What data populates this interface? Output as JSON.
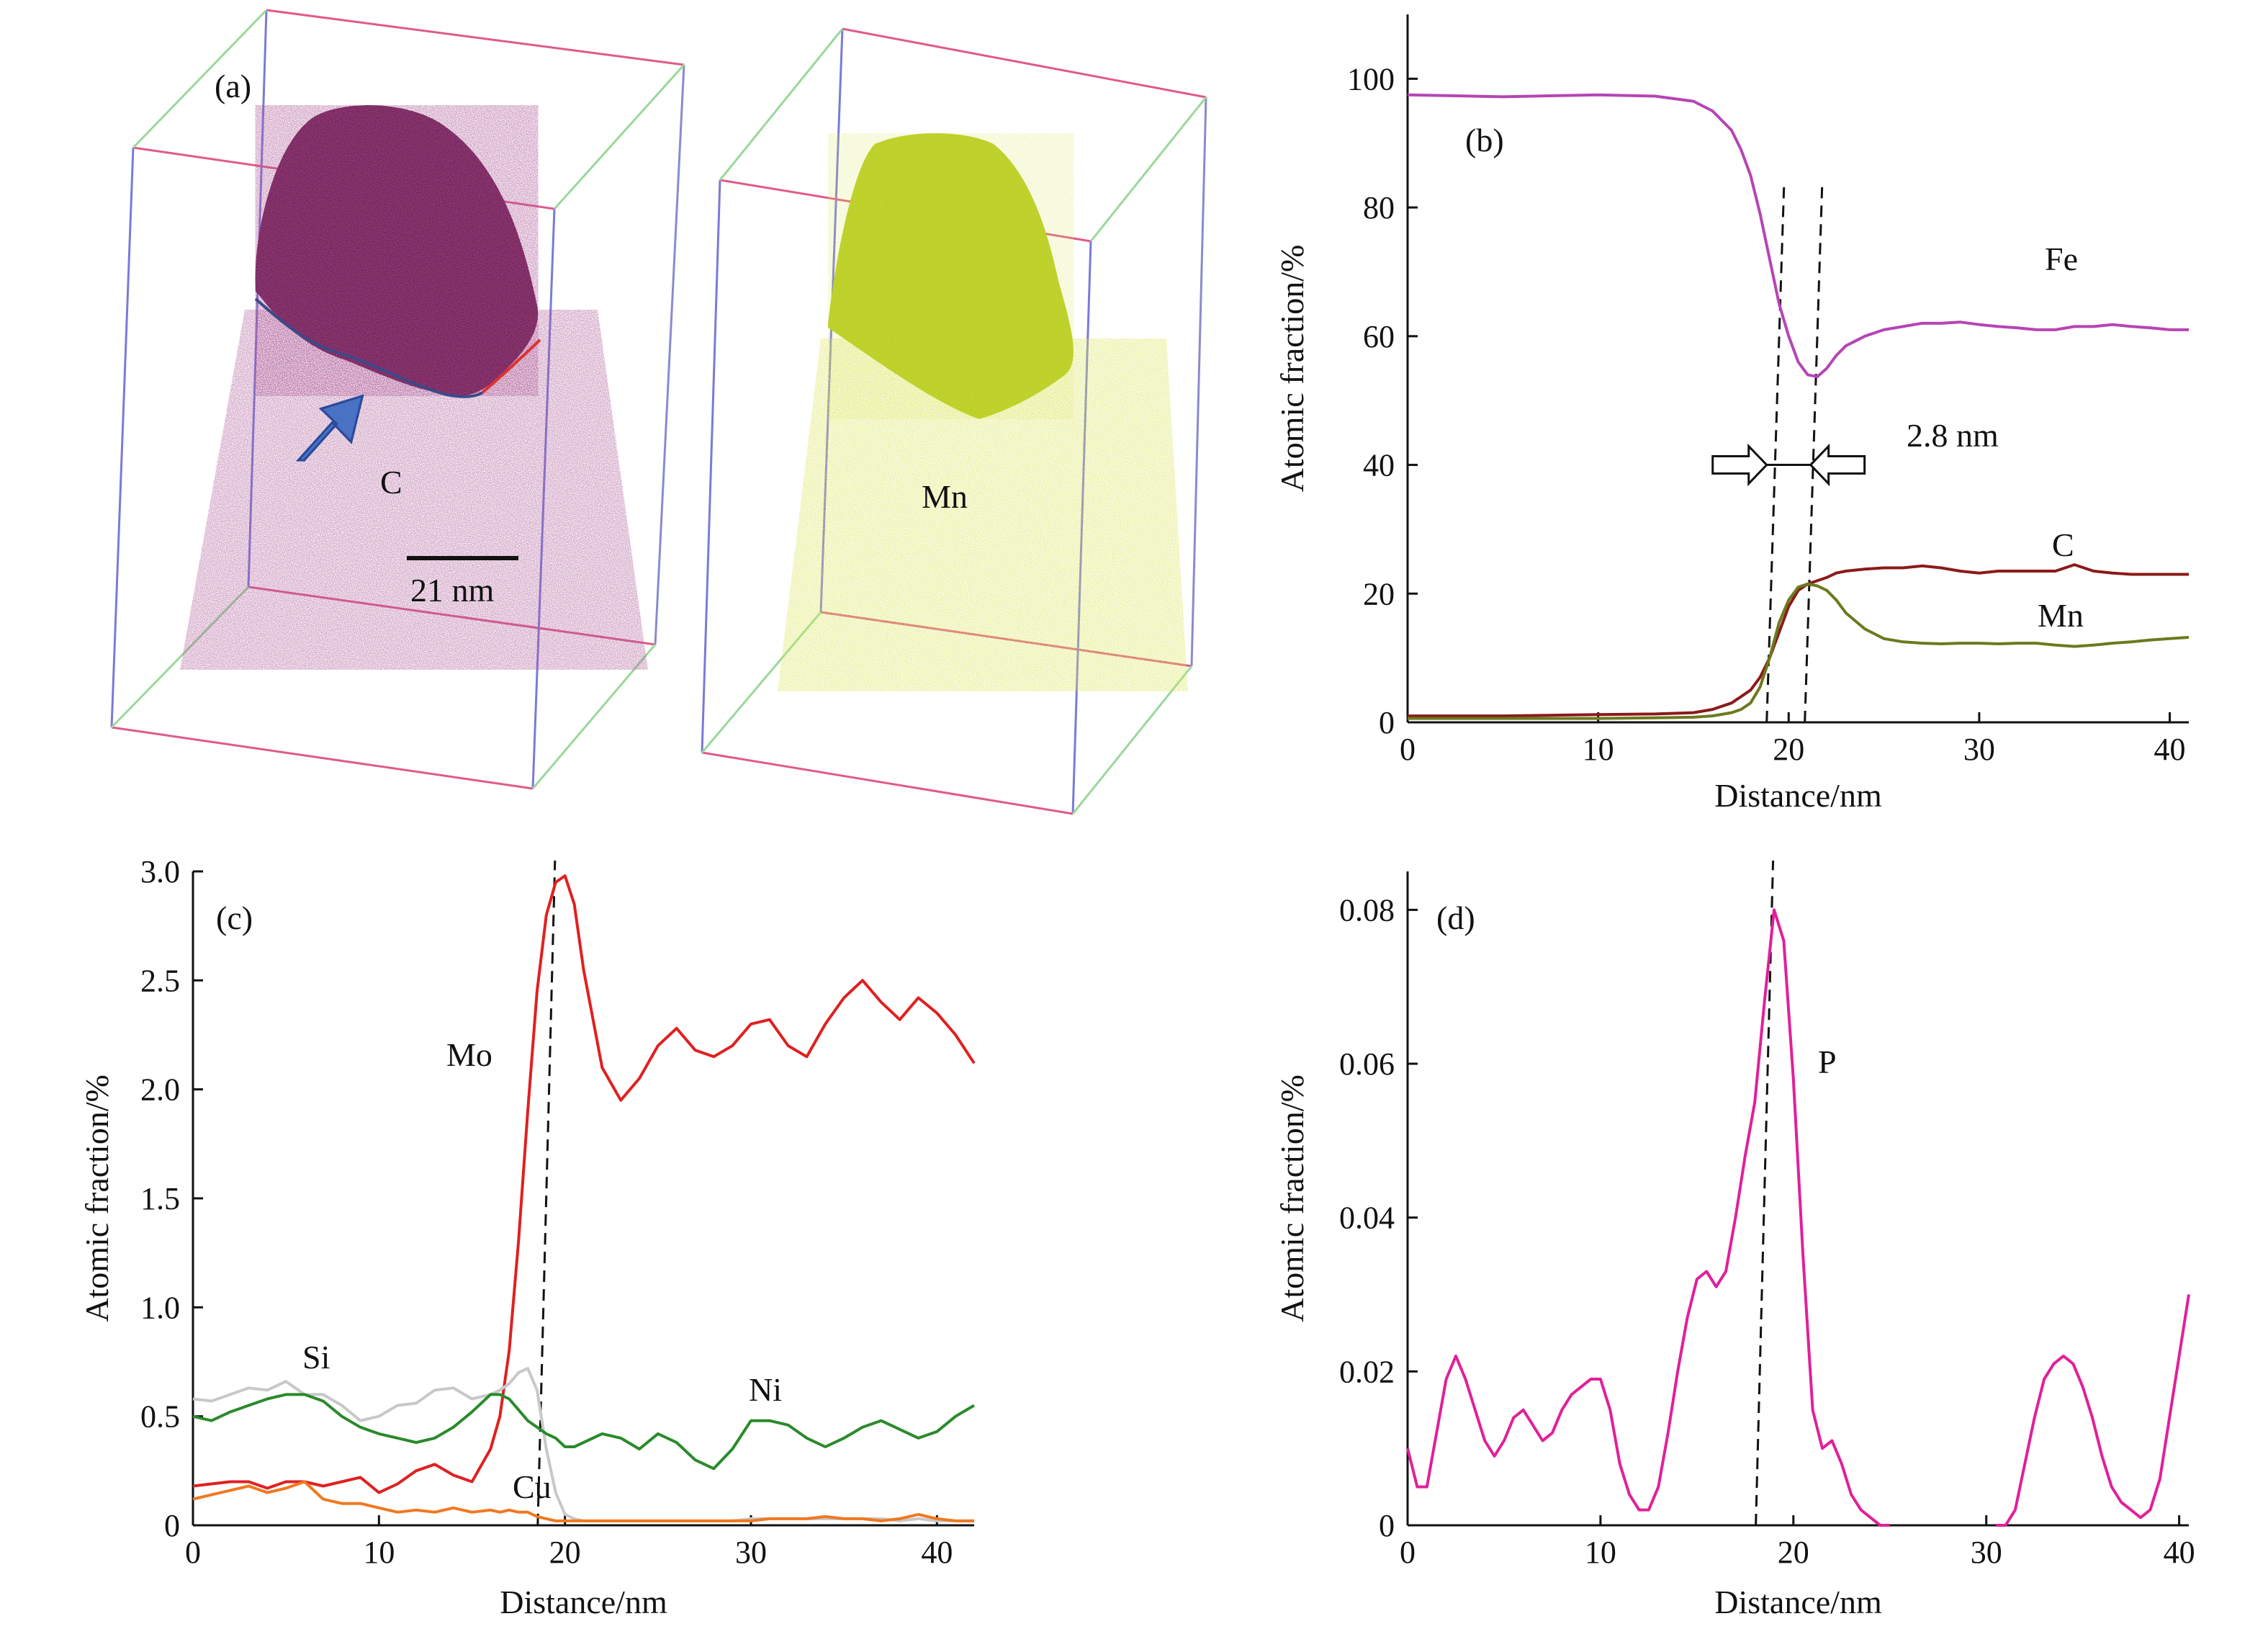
{
  "panels": {
    "a": {
      "label": "(a)",
      "left_element": "C",
      "right_element": "Mn",
      "scalebar_label": "21 nm",
      "colors": {
        "C": "#6b1a4f",
        "Mn": "#b7cc1e",
        "arrow": "#4a72c4"
      }
    }
  },
  "chart_data": [
    {
      "id": "b",
      "type": "line",
      "panel_label": "(b)",
      "xlabel": "Distance/nm",
      "ylabel": "Atomic fraction/%",
      "xlim": [
        0,
        41
      ],
      "ylim": [
        0,
        110
      ],
      "xticks": [
        "0",
        "10",
        "20",
        "30",
        "40"
      ],
      "yticks": [
        "0",
        "20",
        "40",
        "60",
        "80",
        "100"
      ],
      "x": [
        0,
        5,
        10,
        13,
        15,
        16,
        17,
        17.5,
        18,
        18.5,
        19,
        19.5,
        20,
        20.5,
        21,
        21.5,
        22,
        22.5,
        23,
        24,
        25,
        26,
        27,
        28,
        29,
        30,
        31,
        32,
        33,
        34,
        35,
        36,
        37,
        38,
        39,
        40,
        41
      ],
      "series": [
        {
          "name": "Fe",
          "color": "#b545b5",
          "values": [
            97.5,
            97.2,
            97.5,
            97.3,
            96.5,
            95,
            92,
            89,
            85,
            79,
            72,
            65,
            60,
            56,
            54,
            53.7,
            55,
            57,
            58.5,
            60,
            61,
            61.5,
            62,
            62,
            62.2,
            61.8,
            61.5,
            61.3,
            61,
            61,
            61.5,
            61.5,
            61.8,
            61.5,
            61.3,
            61,
            61
          ]
        },
        {
          "name": "C",
          "color": "#8b1a1a",
          "values": [
            1,
            1,
            1.2,
            1.3,
            1.5,
            2,
            3,
            4,
            5,
            7,
            10,
            14,
            18,
            20.5,
            21.5,
            22,
            22.5,
            23.2,
            23.5,
            23.8,
            24,
            24,
            24.3,
            24,
            23.5,
            23.2,
            23.5,
            23.5,
            23.5,
            23.5,
            24.5,
            23.5,
            23.2,
            23,
            23,
            23,
            23
          ]
        },
        {
          "name": "Mn",
          "color": "#6b7a1e",
          "values": [
            0.6,
            0.6,
            0.6,
            0.7,
            0.8,
            1,
            1.5,
            2,
            3,
            5.5,
            10,
            15.5,
            19,
            21,
            21.5,
            21.2,
            20.5,
            19,
            17,
            14.5,
            13,
            12.5,
            12.3,
            12.2,
            12.3,
            12.3,
            12.2,
            12.3,
            12.3,
            12,
            11.8,
            12,
            12.3,
            12.5,
            12.8,
            13,
            13.2
          ]
        }
      ],
      "vlines": [
        19.3,
        21.3
      ],
      "annotation": "2.8 nm"
    },
    {
      "id": "c",
      "type": "line",
      "panel_label": "(c)",
      "xlabel": "Distance/nm",
      "ylabel": "Atomic fraction/%",
      "xlim": [
        0,
        42
      ],
      "ylim": [
        0,
        3.0
      ],
      "xticks": [
        "0",
        "10",
        "20",
        "30",
        "40"
      ],
      "yticks": [
        "0",
        "0.5",
        "1.0",
        "1.5",
        "2.0",
        "2.5",
        "3.0"
      ],
      "x": [
        0,
        1,
        2,
        3,
        4,
        5,
        6,
        7,
        8,
        9,
        10,
        11,
        12,
        13,
        14,
        15,
        16,
        16.5,
        17,
        17.5,
        18,
        18.5,
        19,
        19.5,
        20,
        20.5,
        21,
        22,
        23,
        24,
        25,
        26,
        27,
        28,
        29,
        30,
        31,
        32,
        33,
        34,
        35,
        36,
        37,
        38,
        39,
        40,
        41,
        42
      ],
      "series": [
        {
          "name": "Mo",
          "color": "#e02020",
          "values": [
            0.18,
            0.19,
            0.2,
            0.2,
            0.17,
            0.2,
            0.2,
            0.18,
            0.2,
            0.22,
            0.15,
            0.19,
            0.25,
            0.28,
            0.23,
            0.2,
            0.35,
            0.5,
            0.8,
            1.3,
            1.9,
            2.45,
            2.8,
            2.95,
            2.98,
            2.85,
            2.55,
            2.1,
            1.95,
            2.05,
            2.2,
            2.28,
            2.18,
            2.15,
            2.2,
            2.3,
            2.32,
            2.2,
            2.15,
            2.3,
            2.42,
            2.5,
            2.4,
            2.32,
            2.42,
            2.35,
            2.25,
            2.12
          ]
        },
        {
          "name": "Si",
          "color": "#c8c8c8",
          "values": [
            0.58,
            0.57,
            0.6,
            0.63,
            0.62,
            0.66,
            0.6,
            0.6,
            0.55,
            0.48,
            0.5,
            0.55,
            0.56,
            0.62,
            0.63,
            0.58,
            0.6,
            0.62,
            0.65,
            0.7,
            0.72,
            0.62,
            0.35,
            0.15,
            0.05,
            0.03,
            0.02,
            0.02,
            0.02,
            0.02,
            0.02,
            0.02,
            0.02,
            0.02,
            0.02,
            0.03,
            0.03,
            0.03,
            0.03,
            0.03,
            0.03,
            0.03,
            0.03,
            0.02,
            0.03,
            0.02,
            0.02,
            0.02
          ]
        },
        {
          "name": "Ni",
          "color": "#2a8a2a",
          "values": [
            0.5,
            0.48,
            0.52,
            0.55,
            0.58,
            0.6,
            0.6,
            0.57,
            0.5,
            0.45,
            0.42,
            0.4,
            0.38,
            0.4,
            0.45,
            0.52,
            0.6,
            0.6,
            0.58,
            0.53,
            0.48,
            0.45,
            0.42,
            0.4,
            0.36,
            0.36,
            0.38,
            0.42,
            0.4,
            0.35,
            0.42,
            0.38,
            0.3,
            0.26,
            0.35,
            0.48,
            0.48,
            0.46,
            0.4,
            0.36,
            0.4,
            0.45,
            0.48,
            0.44,
            0.4,
            0.43,
            0.5,
            0.55
          ]
        },
        {
          "name": "Cu",
          "color": "#f07820",
          "values": [
            0.12,
            0.14,
            0.16,
            0.18,
            0.15,
            0.17,
            0.2,
            0.12,
            0.1,
            0.1,
            0.08,
            0.06,
            0.07,
            0.06,
            0.08,
            0.06,
            0.07,
            0.06,
            0.07,
            0.06,
            0.06,
            0.04,
            0.03,
            0.02,
            0.02,
            0.02,
            0.02,
            0.02,
            0.02,
            0.02,
            0.02,
            0.02,
            0.02,
            0.02,
            0.02,
            0.02,
            0.03,
            0.03,
            0.03,
            0.04,
            0.03,
            0.03,
            0.02,
            0.03,
            0.05,
            0.03,
            0.02,
            0.02
          ]
        }
      ],
      "vlines": [
        19
      ]
    },
    {
      "id": "d",
      "type": "line",
      "panel_label": "(d)",
      "xlabel": "Distance/nm",
      "ylabel": "Atomic fraction/%",
      "xlim": [
        0,
        40.5
      ],
      "ylim": [
        0,
        0.085
      ],
      "xticks": [
        "0",
        "10",
        "20",
        "30",
        "40"
      ],
      "yticks": [
        "0",
        "0.02",
        "0.04",
        "0.06",
        "0.08"
      ],
      "x": [
        0,
        0.5,
        1,
        1.5,
        2,
        2.5,
        3,
        3.5,
        4,
        4.5,
        5,
        5.5,
        6,
        6.5,
        7,
        7.5,
        8,
        8.5,
        9,
        9.5,
        10,
        10.5,
        11,
        11.5,
        12,
        12.5,
        13,
        13.5,
        14,
        14.5,
        15,
        15.5,
        16,
        16.5,
        17,
        17.5,
        18,
        18.5,
        19,
        19.5,
        20,
        20.5,
        21,
        21.5,
        22,
        22.5,
        23,
        23.5,
        24,
        24.5,
        25,
        25.5,
        26,
        27,
        28,
        29,
        30,
        30.5,
        31,
        31.5,
        32,
        32.5,
        33,
        33.5,
        34,
        34.5,
        35,
        35.5,
        36,
        36.5,
        37,
        37.5,
        38,
        38.5,
        39,
        39.5,
        40,
        40.5
      ],
      "series": [
        {
          "name": "P",
          "color": "#e0209a",
          "values": [
            0.01,
            0.005,
            0.005,
            0.012,
            0.019,
            0.022,
            0.019,
            0.015,
            0.011,
            0.009,
            0.011,
            0.014,
            0.015,
            0.013,
            0.011,
            0.012,
            0.015,
            0.017,
            0.018,
            0.019,
            0.019,
            0.015,
            0.008,
            0.004,
            0.002,
            0.002,
            0.005,
            0.012,
            0.02,
            0.027,
            0.032,
            0.033,
            0.031,
            0.033,
            0.04,
            0.048,
            0.055,
            0.068,
            0.08,
            0.076,
            0.058,
            0.035,
            0.015,
            0.01,
            0.011,
            0.008,
            0.004,
            0.002,
            0.001,
            0,
            0,
            null,
            null,
            null,
            null,
            null,
            null,
            0,
            0,
            0.002,
            0.008,
            0.014,
            0.019,
            0.021,
            0.022,
            0.021,
            0.018,
            0.014,
            0.009,
            0.005,
            0.003,
            0.002,
            0.001,
            0.002,
            0.006,
            0.014,
            0.022,
            0.03
          ]
        }
      ],
      "vlines": [
        18.5
      ]
    }
  ]
}
